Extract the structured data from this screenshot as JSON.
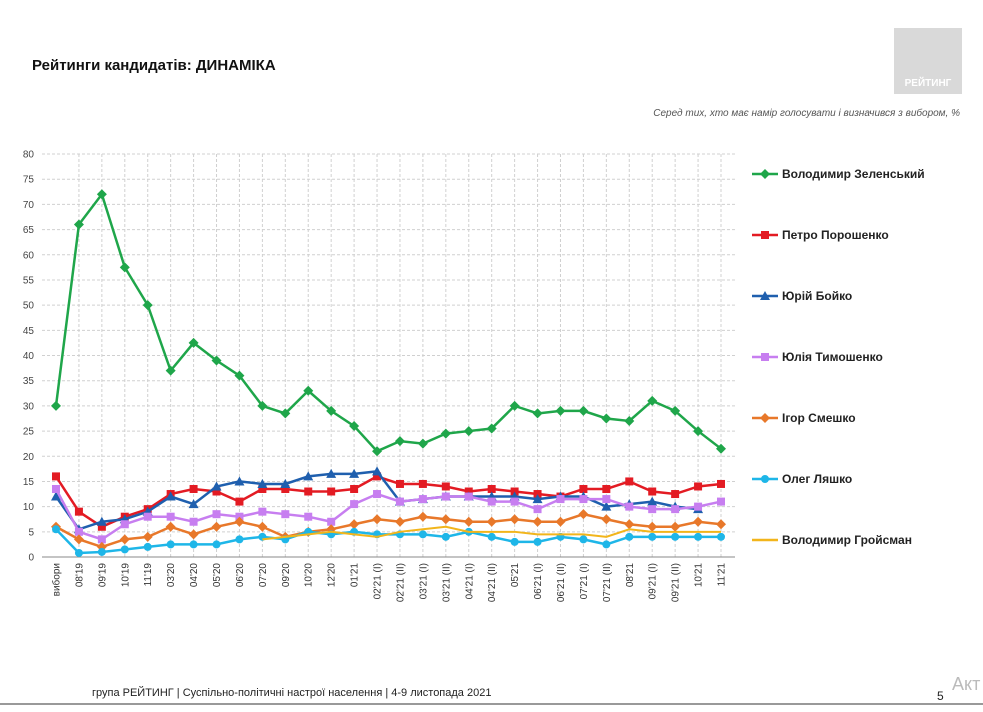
{
  "logo": "РЕЙТИНГ",
  "watermark": "Акт",
  "page_number": "5",
  "footer": "група РЕЙТИНГ | Суспільно-політичні настрої населення  | 4-9 листопада 2021",
  "chart_data": {
    "type": "line",
    "title": "Рейтинги кандидатів: ДИНАМІКА",
    "subtitle": "Серед тих, хто має намір голосувати і визначився з вибором, %",
    "categories": [
      "вибори",
      "08'19",
      "09'19",
      "10'19",
      "11'19",
      "03'20",
      "04'20",
      "05'20",
      "06'20",
      "07'20",
      "09'20",
      "10'20",
      "12'20",
      "01'21",
      "02'21 (I)",
      "02'21 (II)",
      "03'21 (I)",
      "03'21 (II)",
      "04'21 (I)",
      "04'21 (II)",
      "05'21",
      "06'21 (I)",
      "06'21 (II)",
      "07'21 (I)",
      "07'21 (II)",
      "08'21",
      "09'21 (I)",
      "09'21 (II)",
      "10'21",
      "11'21"
    ],
    "ylim": [
      0,
      80
    ],
    "yticks": [
      0,
      5,
      10,
      15,
      20,
      25,
      30,
      35,
      40,
      45,
      50,
      55,
      60,
      65,
      70,
      75,
      80
    ],
    "grid": true,
    "series": [
      {
        "name": "Володимир Зеленський",
        "color": "#1fa64a",
        "marker": "diamond",
        "values": [
          30,
          66,
          72,
          57.5,
          50,
          37,
          42.5,
          39,
          36,
          30,
          28.5,
          33,
          29,
          26,
          21,
          23,
          22.5,
          24.5,
          25,
          25.5,
          30,
          28.5,
          29,
          29,
          27.5,
          27,
          31,
          29,
          25,
          21.5
        ]
      },
      {
        "name": "Петро Порошенко",
        "color": "#e31b23",
        "marker": "square",
        "values": [
          16,
          9,
          6,
          8,
          9.5,
          12.5,
          13.5,
          13,
          11,
          13.5,
          13.5,
          13,
          13,
          13.5,
          16,
          14.5,
          14.5,
          14,
          13,
          13.5,
          13,
          12.5,
          12,
          13.5,
          13.5,
          15,
          13,
          12.5,
          14,
          14.5
        ]
      },
      {
        "name": "Юрій Бойко",
        "color": "#1f5fae",
        "marker": "triangle",
        "values": [
          12,
          5.5,
          7,
          7.5,
          9,
          12,
          10.5,
          14,
          15,
          14.5,
          14.5,
          16,
          16.5,
          16.5,
          17,
          11,
          11.5,
          12,
          12,
          12,
          12,
          11.5,
          12,
          12,
          10,
          10.5,
          11,
          10,
          9.5,
          null
        ]
      },
      {
        "name": "Юлія Тимошенко",
        "color": "#c77ef0",
        "marker": "square",
        "values": [
          13.5,
          5,
          3.5,
          6.5,
          8,
          8,
          7,
          8.5,
          8,
          9,
          8.5,
          8,
          7,
          10.5,
          12.5,
          11,
          11.5,
          12,
          12,
          11,
          11,
          9.5,
          11.5,
          11.5,
          11.5,
          10,
          9.5,
          9.5,
          10,
          11
        ]
      },
      {
        "name": "Ігор Смешко",
        "color": "#e8782a",
        "marker": "diamond",
        "values": [
          6,
          3.5,
          2,
          3.5,
          4,
          6,
          4.5,
          6,
          7,
          6,
          4,
          5,
          5.5,
          6.5,
          7.5,
          7,
          8,
          7.5,
          7,
          7,
          7.5,
          7,
          7,
          8.5,
          7.5,
          6.5,
          6,
          6,
          7,
          6.5
        ]
      },
      {
        "name": "Олег Ляшко",
        "color": "#1eb6e8",
        "marker": "circle",
        "values": [
          5.5,
          0.8,
          1,
          1.5,
          2,
          2.5,
          2.5,
          2.5,
          3.5,
          4,
          3.5,
          5,
          4.5,
          5,
          4.5,
          4.5,
          4.5,
          4,
          5,
          4,
          3,
          3,
          4,
          3.5,
          2.5,
          4,
          4,
          4,
          4,
          4
        ]
      },
      {
        "name": "Володимир Гройсман",
        "color": "#f2b51b",
        "marker": "none",
        "values": [
          null,
          null,
          null,
          null,
          null,
          null,
          null,
          null,
          null,
          3.5,
          4,
          4.5,
          5,
          4.5,
          4,
          5,
          5.5,
          6,
          5,
          5,
          5,
          4.5,
          4.5,
          4.5,
          4,
          5.5,
          5,
          5,
          5,
          5
        ]
      }
    ]
  }
}
